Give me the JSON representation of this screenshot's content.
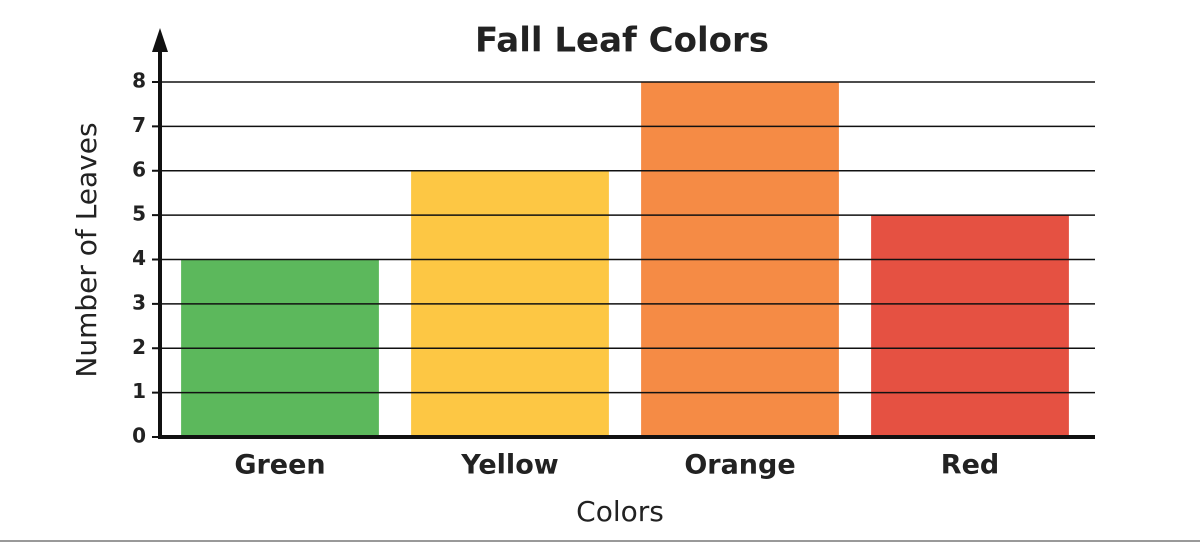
{
  "chart_data": {
    "type": "bar",
    "title": "Fall Leaf Colors",
    "x_label": "Colors",
    "y_label": "Number of Leaves",
    "categories": [
      "Green",
      "Yellow",
      "Orange",
      "Red"
    ],
    "values": [
      4,
      6,
      8,
      5
    ],
    "colors": [
      "#5cb85c",
      "#fdc744",
      "#f58b45",
      "#e55142"
    ],
    "ylim": [
      0,
      8
    ],
    "yticks": [
      0,
      1,
      2,
      3,
      4,
      5,
      6,
      7,
      8
    ],
    "grid": true
  }
}
